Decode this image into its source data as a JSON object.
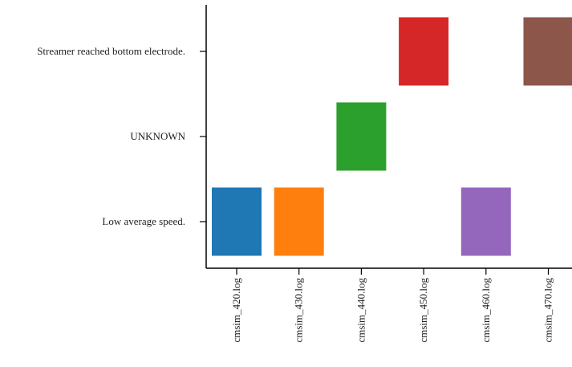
{
  "chart_data": {
    "type": "bar",
    "title": "",
    "xlabel": "",
    "ylabel": "",
    "categories": [
      "cmsim_420.log",
      "cmsim_430.log",
      "cmsim_440.log",
      "cmsim_450.log",
      "cmsim_460.log",
      "cmsim_470.log"
    ],
    "y_categories": [
      "Low average speed.",
      "UNKNOWN",
      "Streamer reached bottom electrode."
    ],
    "values": [
      "Low average speed.",
      "Low average speed.",
      "UNKNOWN",
      "Streamer reached bottom electrode.",
      "Low average speed.",
      "Streamer reached bottom electrode."
    ],
    "colors": [
      "#1f77b4",
      "#ff7f0e",
      "#2ca02c",
      "#d62728",
      "#9467bd",
      "#8c564b"
    ],
    "grid": false,
    "legend": "none"
  }
}
